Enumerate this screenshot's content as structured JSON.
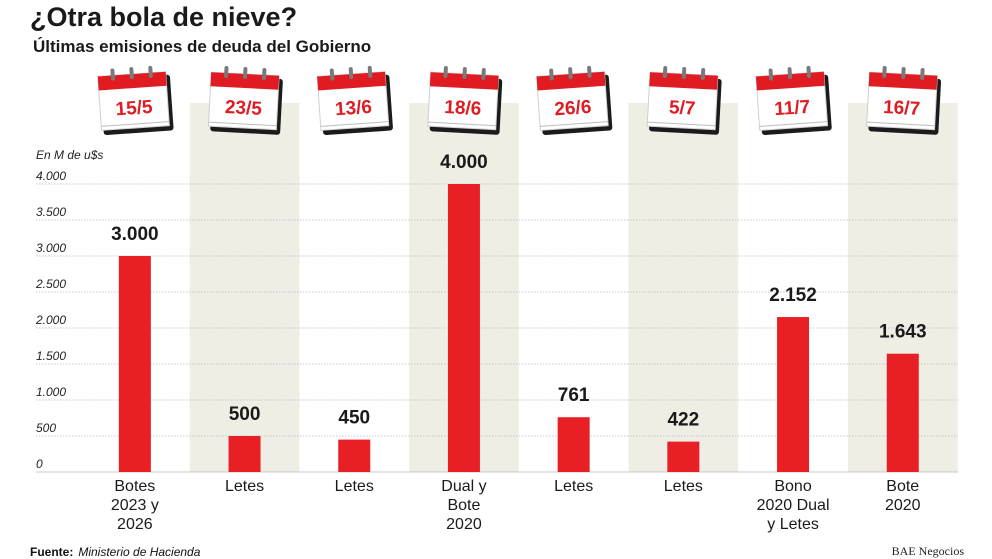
{
  "title": "¿Otra bola de nieve?",
  "subtitle": "Últimas emisiones de deuda del Gobierno",
  "chart_data": {
    "type": "bar",
    "unit_label": "En M de u$s",
    "dates": [
      "15/5",
      "23/5",
      "13/6",
      "18/6",
      "26/6",
      "5/7",
      "11/7",
      "16/7"
    ],
    "categories": [
      [
        "Botes",
        "2023 y",
        "2026"
      ],
      [
        "Letes"
      ],
      [
        "Letes"
      ],
      [
        "Dual y",
        "Bote",
        "2020"
      ],
      [
        "Letes"
      ],
      [
        "Letes"
      ],
      [
        "Bono",
        "2020 Dual",
        "y Letes"
      ],
      [
        "Bote",
        "2020"
      ]
    ],
    "values": [
      3000,
      500,
      450,
      4000,
      761,
      422,
      2152,
      1643
    ],
    "value_labels": [
      "3.000",
      "500",
      "450",
      "4.000",
      "761",
      "422",
      "2.152",
      "1.643"
    ],
    "yticks": [
      0,
      500,
      1000,
      1500,
      2000,
      2500,
      3000,
      3500,
      4000
    ],
    "ytick_labels": [
      "0",
      "500",
      "1.000",
      "1.500",
      "2.000",
      "2.500",
      "3.000",
      "3.500",
      "4.000"
    ],
    "ylim": [
      0,
      4000
    ],
    "grid": true,
    "colors": {
      "bar": "#e81f25",
      "band": "#eeeee4",
      "grid": "#c8c8c8",
      "calendar_red": "#e11b22",
      "calendar_shadow": "#1b1b1b"
    }
  },
  "footer": {
    "source_label": "Fuente:",
    "source_value": "Ministerio de Hacienda",
    "brand": "BAE Negocios"
  }
}
